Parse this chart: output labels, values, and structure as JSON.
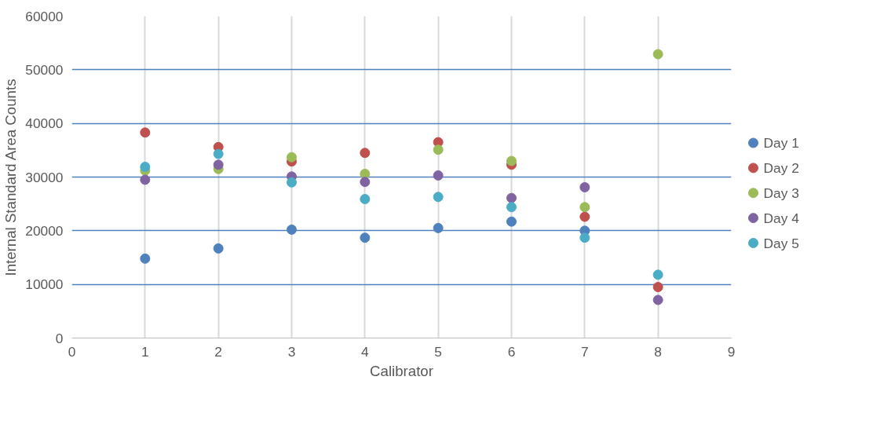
{
  "chart_data": {
    "type": "scatter",
    "xlabel": "Calibrator",
    "ylabel": "Internal Standard Area Counts",
    "x": [
      1,
      2,
      3,
      4,
      5,
      6,
      7,
      8
    ],
    "series": [
      {
        "name": "Day 1",
        "color": "#4f81bd",
        "values": [
          14800,
          16700,
          20200,
          18700,
          20500,
          21700,
          20000,
          null
        ]
      },
      {
        "name": "Day 2",
        "color": "#c0504d",
        "values": [
          38300,
          35600,
          32900,
          34500,
          36500,
          32300,
          22600,
          9500
        ]
      },
      {
        "name": "Day 3",
        "color": "#9bbb59",
        "values": [
          31200,
          31500,
          33700,
          30600,
          35100,
          33000,
          24400,
          52900
        ]
      },
      {
        "name": "Day 4",
        "color": "#8064a2",
        "values": [
          29500,
          32300,
          30100,
          29100,
          30300,
          26100,
          28100,
          7100
        ]
      },
      {
        "name": "Day 5",
        "color": "#4bacc6",
        "values": [
          31900,
          34300,
          29000,
          25900,
          26300,
          24400,
          18700,
          11800
        ]
      }
    ],
    "xlim": [
      0,
      9
    ],
    "xticks": [
      0,
      1,
      2,
      3,
      4,
      5,
      6,
      7,
      8,
      9
    ],
    "ylim": [
      0,
      60000
    ],
    "yticks": [
      0,
      10000,
      20000,
      30000,
      40000,
      50000,
      60000
    ],
    "grid": true,
    "legend": "right",
    "marker": "circle"
  }
}
